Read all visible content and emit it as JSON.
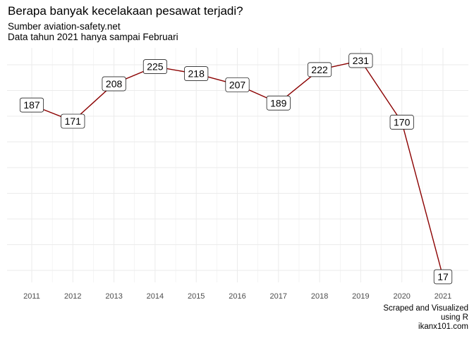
{
  "header": {
    "title": "Berapa banyak kecelakaan pesawat terjadi?",
    "subtitle_lines": [
      "Sumber aviation-safety.net",
      "Data tahun 2021 hanya sampai Februari"
    ]
  },
  "caption_lines": [
    "Scraped and Visualized",
    "using R",
    "ikanx101.com"
  ],
  "colors": {
    "line": "#8b0000",
    "grid": "#ebebeb",
    "label_border": "#000000",
    "tick_text": "#4d4d4d"
  },
  "chart_data": {
    "type": "line",
    "x": [
      "2011",
      "2012",
      "2013",
      "2014",
      "2015",
      "2016",
      "2017",
      "2018",
      "2019",
      "2020",
      "2021"
    ],
    "values": [
      187,
      171,
      208,
      225,
      218,
      207,
      189,
      222,
      231,
      170,
      17
    ],
    "ylim": [
      17,
      231
    ],
    "grid": true,
    "y_tick_labels_shown": false,
    "data_labels": true
  }
}
